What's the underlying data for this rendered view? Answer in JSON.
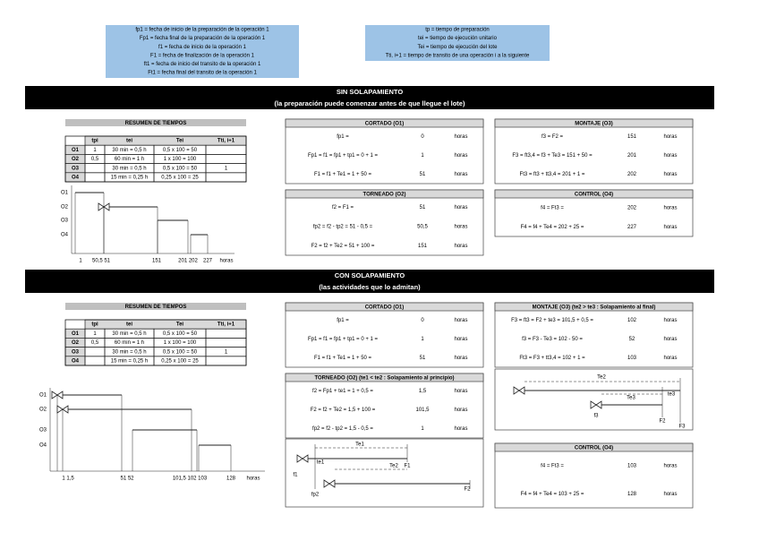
{
  "legend_left": [
    "fp1 = fecha de inicio de la preparación de la operación 1",
    "Fp1 = fecha final de la preparación de la operación 1",
    "f1 = fecha de inicio de la operación 1",
    "F1 = fecha de finalización de la operación 1",
    "ft1 = fecha de inicio del transito de la operación 1",
    "Ft1 = fecha final del transito de la operación 1"
  ],
  "legend_right": [
    "tp = tiempo de preparación",
    "tei = tiempo de ejecución unitario",
    "Tei = tiempo de ejecución del lote",
    "Tti, i+1 = tiempo de transito de una operación i a la siguiente"
  ],
  "sections": [
    {
      "title": "SIN SOLAPAMIENTO",
      "subtitle": "(la preparación puede comenzar antes de que llegue el lote)",
      "summary": {
        "title": "RESUMEN DE TIEMPOS",
        "header": [
          "tpi",
          "tei",
          "Tei",
          "Tti, i+1"
        ],
        "rows": [
          [
            "O1",
            "1",
            "30 min = 0,5 h",
            "0,5 x 100 = 50",
            null
          ],
          [
            "O2",
            "0,5",
            "60 min = 1 h",
            "1 x 100 = 100",
            null
          ],
          [
            "O3",
            null,
            "30 min = 0,5 h",
            "0,5 x 100 = 50",
            "1"
          ],
          [
            "O4",
            null,
            "15 min = 0,25 h",
            "0,25 x 100 = 25",
            null
          ]
        ]
      },
      "gantt": {
        "rows": [
          "O1",
          "O2",
          "O3",
          "O4"
        ],
        "axis": [
          "1",
          "50,5 51",
          "151",
          "201 202",
          "227"
        ],
        "unit": "horas"
      },
      "panels": [
        {
          "title": "CORTADO (O1)",
          "rows": [
            [
              "fp1 =",
              "0",
              "horas"
            ],
            [
              "Fp1 = f1 = fp1 + tp1 = 0 + 1 =",
              "1",
              "horas"
            ],
            [
              "F1 = f1 + Te1 = 1 + 50 =",
              "51",
              "horas"
            ]
          ]
        },
        {
          "title": "MONTAJE (O3)",
          "rows": [
            [
              "f3 = F2 =",
              "151",
              "horas"
            ],
            [
              "F3 = ft3,4 = f3 + Te3 = 151 + 50 =",
              "201",
              "horas"
            ],
            [
              "Ft3 = ft3 + tt3,4 = 201 + 1 =",
              "202",
              "horas"
            ]
          ]
        },
        {
          "title": "TORNEADO (O2)",
          "rows": [
            [
              "f2 = F1 =",
              "51",
              "horas"
            ],
            [
              "fp2 = f2 - tp2 = 51 - 0,5 =",
              "50,5",
              "horas"
            ],
            [
              "F2 = f2 + Te2 = 51 + 100 =",
              "151",
              "horas"
            ]
          ]
        },
        {
          "title": "CONTROL (O4)",
          "rows": [
            [
              "f4 = Ft3 =",
              "202",
              "horas"
            ],
            [
              "F4 = f4 + Te4 = 202 + 25 =",
              "227",
              "horas"
            ]
          ]
        }
      ]
    },
    {
      "title": "CON SOLAPAMIENTO",
      "subtitle": "(las actividades que lo admitan)",
      "summary": {
        "title": "RESUMEN DE TIEMPOS",
        "header": [
          "tpi",
          "tei",
          "Tei",
          "Tti, i+1"
        ],
        "rows": [
          [
            "O1",
            "1",
            "30 min = 0,5 h",
            "0,5 x 100 = 50",
            null
          ],
          [
            "O2",
            "0,5",
            "60 min = 1 h",
            "1 x 100 = 100",
            null
          ],
          [
            "O3",
            null,
            "30 min = 0,5 h",
            "0,5 x 100 = 50",
            "1"
          ],
          [
            "O4",
            null,
            "15 min = 0,25 h",
            "0,25 x 100 = 25",
            null
          ]
        ]
      },
      "gantt": {
        "rows": [
          "O1",
          "O2",
          "O3",
          "O4"
        ],
        "axis": [
          "1 1,5",
          "51 52",
          "101,5 102 103",
          "128"
        ],
        "unit": "horas"
      },
      "panels": [
        {
          "title": "CORTADO (O1)",
          "rows": [
            [
              "fp1 =",
              "0",
              "horas"
            ],
            [
              "Fp1 = f1 = fp1 + tp1 = 0 + 1 =",
              "1",
              "horas"
            ],
            [
              "F1 = f1 + Te1 = 1 + 50 =",
              "51",
              "horas"
            ]
          ]
        },
        {
          "title": "MONTAJE (O3) (te2 > te3 : Solapamiento al final)",
          "rows": [
            [
              "F3 = ft3 = F2 + te3 = 101,5 + 0,5 =",
              "102",
              "horas"
            ],
            [
              "f3 = F3 - Te3 = 102 - 50 =",
              "52",
              "horas"
            ],
            [
              "Ft3 = F3 + tt3,4 = 102 + 1 =",
              "103",
              "horas"
            ]
          ],
          "diagram": [
            "Te2",
            "Te3",
            "te3",
            "f3",
            "F2",
            "F3"
          ]
        },
        {
          "title": "TORNEADO (O2) (te1 < te2 : Solapamiento al principio)",
          "rows": [
            [
              "f2 = Fp1 + te1 = 1 + 0,5 =",
              "1,5",
              "horas"
            ],
            [
              "F2 = f2 + Te2 = 1,5 + 100 =",
              "101,5",
              "horas"
            ],
            [
              "fp2 = f2 - tp2 = 1,5 - 0,5 =",
              "1",
              "horas"
            ]
          ],
          "diagram": [
            "Te1",
            "te1",
            "Te2",
            "f1",
            "F1",
            "fp2",
            "F2"
          ]
        },
        {
          "title": "CONTROL (O4)",
          "rows": [
            [
              "f4 = Ft3 =",
              "103",
              "horas"
            ],
            [
              "F4 = f4 + Te4 = 103 + 25 =",
              "128",
              "horas"
            ]
          ]
        }
      ]
    }
  ]
}
